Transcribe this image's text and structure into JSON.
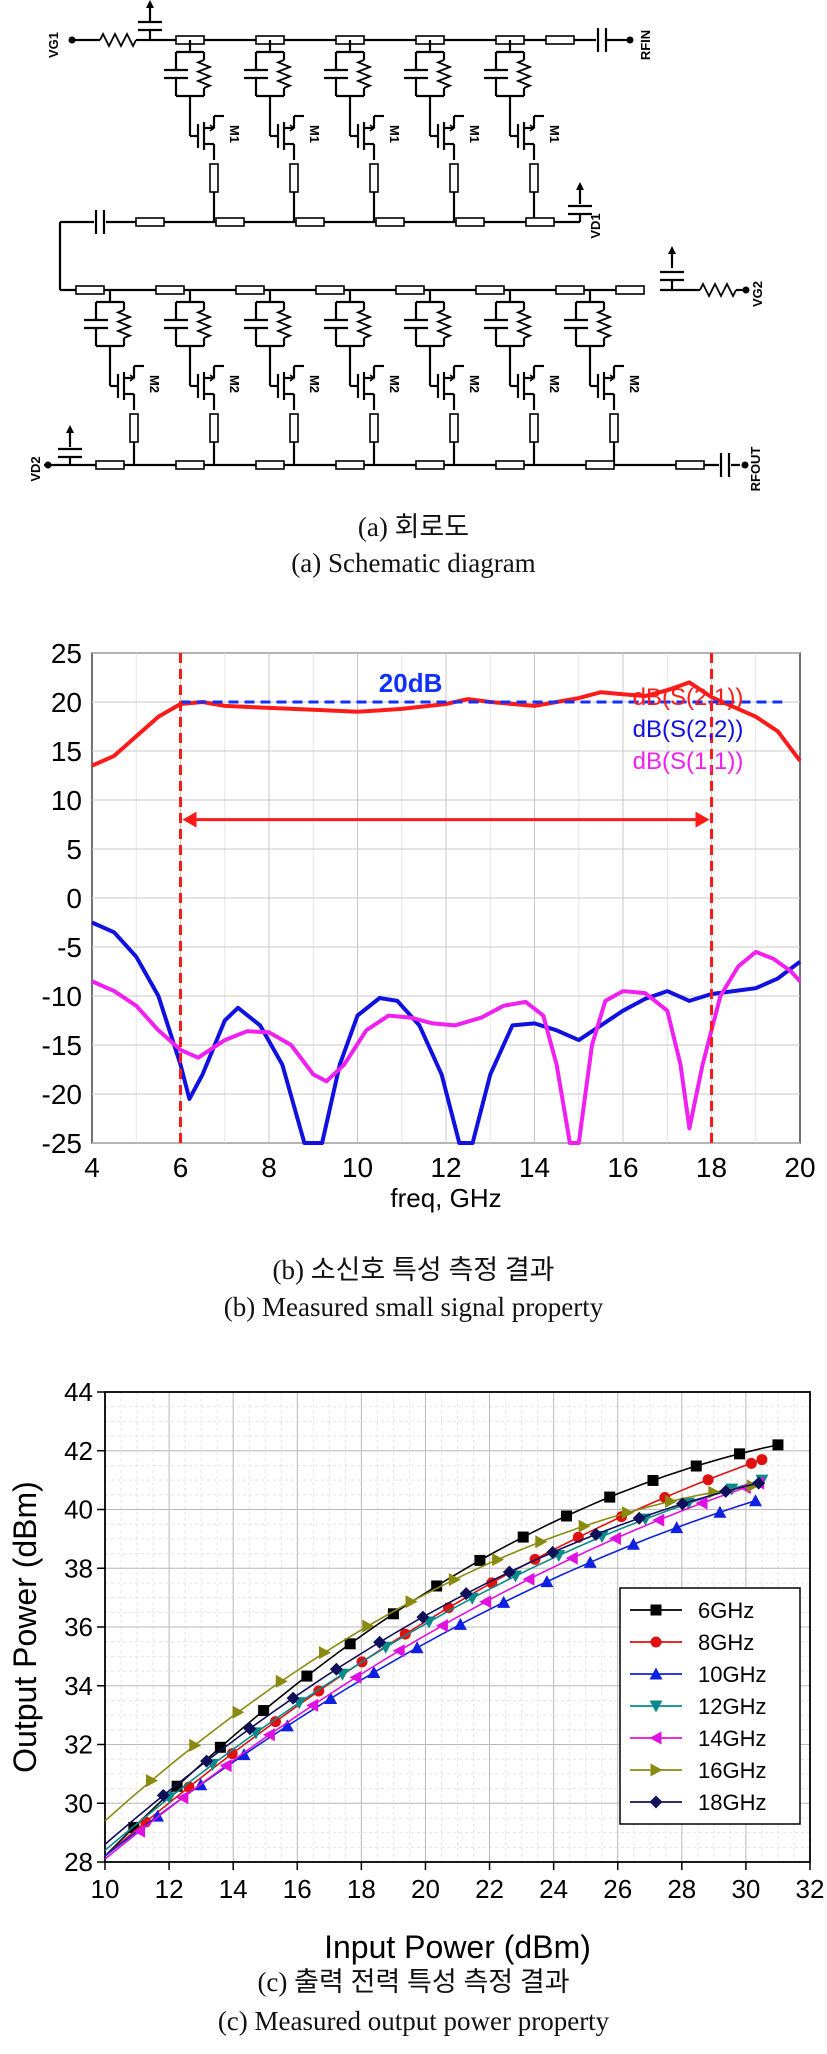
{
  "schematic": {
    "labels": {
      "vg1": "VG1",
      "rf_in": "RFIN",
      "vd1": "VD1",
      "vg2": "VG2",
      "vd2": "VD2",
      "rf_out": "RFOUT",
      "m1": "M1",
      "m2": "M2"
    },
    "stage1_count": 5,
    "stage2_count": 7
  },
  "captions": {
    "a_kr": "(a)  회로도",
    "a_en": "(a)  Schematic  diagram",
    "b_kr": "(b)  소신호  특성  측정  결과",
    "b_en": "(b)  Measured  small  signal  property",
    "c_kr": "(c)  출력  전력  특성  측정  결과",
    "c_en": "(c)  Measured  output  power  property"
  },
  "chart_data": [
    {
      "type": "line",
      "xlabel": "freq, GHz",
      "ylabel": "",
      "xlim": [
        4,
        20
      ],
      "ylim": [
        -25,
        25
      ],
      "xticks": [
        "4",
        "6",
        "8",
        "10",
        "12",
        "14",
        "16",
        "18",
        "20"
      ],
      "yticks": [
        "25",
        "20",
        "15",
        "10",
        "5",
        "0",
        "-5",
        "-10",
        "-15",
        "-20",
        "-25"
      ],
      "grid": true,
      "annotation": "20dB",
      "reference_line_y": 20,
      "band_markers_x": [
        6,
        18
      ],
      "legend_position": "top-right",
      "series": [
        {
          "name": "dB(S(2,1))",
          "color": "#ff1a1a",
          "x": [
            4,
            4.5,
            5,
            5.5,
            6,
            6.5,
            7,
            8,
            9,
            10,
            11,
            12,
            12.5,
            13,
            14,
            15,
            15.5,
            16,
            16.5,
            17,
            17.5,
            18,
            18.5,
            19,
            19.5,
            20
          ],
          "y": [
            13.5,
            14.5,
            16.5,
            18.5,
            19.8,
            20,
            19.6,
            19.4,
            19.2,
            19.0,
            19.3,
            19.8,
            20.3,
            20.0,
            19.6,
            20.4,
            21,
            20.8,
            20.6,
            21.2,
            22,
            20.5,
            19.5,
            18.5,
            17,
            14
          ]
        },
        {
          "name": "dB(S(2,2))",
          "color": "#1010e0",
          "x": [
            4,
            4.5,
            5,
            5.5,
            6,
            6.2,
            6.5,
            7,
            7.3,
            7.8,
            8.3,
            8.8,
            9.2,
            9.6,
            10,
            10.5,
            10.9,
            11.4,
            11.9,
            12.3,
            12.6,
            13,
            13.5,
            14,
            14.5,
            15,
            15.5,
            16,
            16.5,
            17,
            17.5,
            18,
            18.5,
            19,
            19.5,
            20
          ],
          "y": [
            -2.5,
            -3.5,
            -6,
            -10,
            -17,
            -20.5,
            -18,
            -12.5,
            -11.2,
            -13,
            -17,
            -25,
            -25,
            -17,
            -12,
            -10.2,
            -10.5,
            -13,
            -18,
            -25,
            -25,
            -18,
            -13,
            -12.8,
            -13.5,
            -14.5,
            -13,
            -11.5,
            -10.3,
            -9.5,
            -10.5,
            -9.8,
            -9.5,
            -9.2,
            -8.2,
            -6.5
          ]
        },
        {
          "name": "dB(S(1,1))",
          "color": "#f020f0",
          "x": [
            4,
            4.5,
            5,
            5.5,
            6,
            6.4,
            7,
            7.5,
            8,
            8.5,
            9,
            9.3,
            9.7,
            10.2,
            10.7,
            11.2,
            11.7,
            12.2,
            12.8,
            13.3,
            13.8,
            14.2,
            14.5,
            14.8,
            15,
            15.3,
            15.6,
            16,
            16.5,
            17,
            17.3,
            17.5,
            17.8,
            18.2,
            18.6,
            19,
            19.4,
            19.8,
            20
          ],
          "y": [
            -8.5,
            -9.5,
            -11,
            -13.5,
            -15.5,
            -16.3,
            -14.5,
            -13.6,
            -13.7,
            -15,
            -18,
            -18.7,
            -17,
            -13.5,
            -12,
            -12.2,
            -12.8,
            -13,
            -12.2,
            -11,
            -10.6,
            -12,
            -17,
            -25,
            -25,
            -15,
            -10.5,
            -9.5,
            -9.7,
            -11.5,
            -17,
            -23.5,
            -17,
            -10,
            -7,
            -5.5,
            -6.2,
            -7.5,
            -8.5
          ]
        }
      ]
    },
    {
      "type": "line",
      "xlabel": "Input Power (dBm)",
      "ylabel": "Output Power (dBm)",
      "xlim": [
        10,
        32
      ],
      "ylim": [
        28,
        44
      ],
      "xticks": [
        "10",
        "12",
        "14",
        "16",
        "18",
        "20",
        "22",
        "24",
        "26",
        "28",
        "30",
        "32"
      ],
      "yticks": [
        "28",
        "30",
        "32",
        "34",
        "36",
        "38",
        "40",
        "42",
        "44"
      ],
      "grid": true,
      "legend_position": "bottom-right",
      "series": [
        {
          "name": "6GHz",
          "color": "#000000",
          "marker": "square",
          "points": [
            [
              10,
              28.2
            ],
            [
              18,
              35.7
            ],
            [
              31,
              42.2
            ]
          ]
        },
        {
          "name": "8GHz",
          "color": "#e01010",
          "marker": "circle",
          "points": [
            [
              10,
              28.2
            ],
            [
              18,
              34.8
            ],
            [
              30.5,
              41.7
            ]
          ]
        },
        {
          "name": "10GHz",
          "color": "#1020e0",
          "marker": "triangle-up",
          "points": [
            [
              10,
              28.2
            ],
            [
              18,
              34.2
            ],
            [
              30.3,
              40.3
            ]
          ]
        },
        {
          "name": "12GHz",
          "color": "#0a8a8a",
          "marker": "triangle-down",
          "points": [
            [
              10,
              28.4
            ],
            [
              18,
              34.8
            ],
            [
              30.5,
              41.0
            ]
          ]
        },
        {
          "name": "14GHz",
          "color": "#e010e0",
          "marker": "triangle-left",
          "points": [
            [
              10,
              28.1
            ],
            [
              18,
              34.4
            ],
            [
              30.4,
              40.9
            ]
          ]
        },
        {
          "name": "16GHz",
          "color": "#8a8a10",
          "marker": "triangle-right",
          "points": [
            [
              10,
              29.4
            ],
            [
              18,
              35.9
            ],
            [
              30.2,
              40.8
            ]
          ]
        },
        {
          "name": "18GHz",
          "color": "#10105a",
          "marker": "diamond",
          "points": [
            [
              10,
              28.6
            ],
            [
              18,
              35.1
            ],
            [
              30.4,
              40.9
            ]
          ]
        }
      ]
    }
  ]
}
